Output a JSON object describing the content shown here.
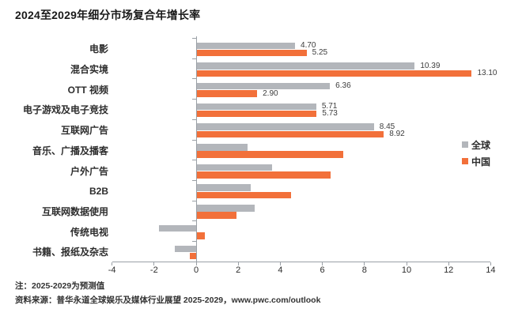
{
  "title": "2024至2029年细分市场复合年增长率",
  "chart_data": {
    "type": "bar",
    "orientation": "horizontal",
    "title": "2024至2029年细分市场复合年增长率",
    "categories": [
      "电影",
      "混合实境",
      "OTT 视频",
      "电子游戏及电子竞技",
      "互联网广告",
      "音乐、广播及播客",
      "户外广告",
      "B2B",
      "互联网数据使用",
      "传统电视",
      "书籍、报纸及杂志"
    ],
    "series": [
      {
        "name": "全球",
        "color": "#B3B6BB",
        "values": [
          4.7,
          10.39,
          6.36,
          5.71,
          8.45,
          2.45,
          3.6,
          2.6,
          2.8,
          -1.75,
          -1.0
        ],
        "labels": [
          "4.70",
          "10.39",
          "6.36",
          "5.71",
          "8.45",
          "",
          "",
          "",
          "",
          "",
          ""
        ]
      },
      {
        "name": "中国",
        "color": "#F2703A",
        "values": [
          5.25,
          13.1,
          2.9,
          5.73,
          8.92,
          7.0,
          6.4,
          4.5,
          1.9,
          0.4,
          -0.3
        ],
        "labels": [
          "5.25",
          "13.10",
          "2.90",
          "5.73",
          "8.92",
          "",
          "",
          "",
          "",
          "",
          ""
        ]
      }
    ],
    "xlim": [
      -4,
      14
    ],
    "xticks": [
      -4,
      -2,
      0,
      2,
      4,
      6,
      8,
      10,
      12,
      14
    ],
    "grid": false,
    "legend_position": "right"
  },
  "notes": {
    "line1": "注：2025-2029为预测值",
    "line2": "资料来源：普华永道全球娱乐及媒体行业展望 2025-2029，www.pwc.com/outlook"
  }
}
